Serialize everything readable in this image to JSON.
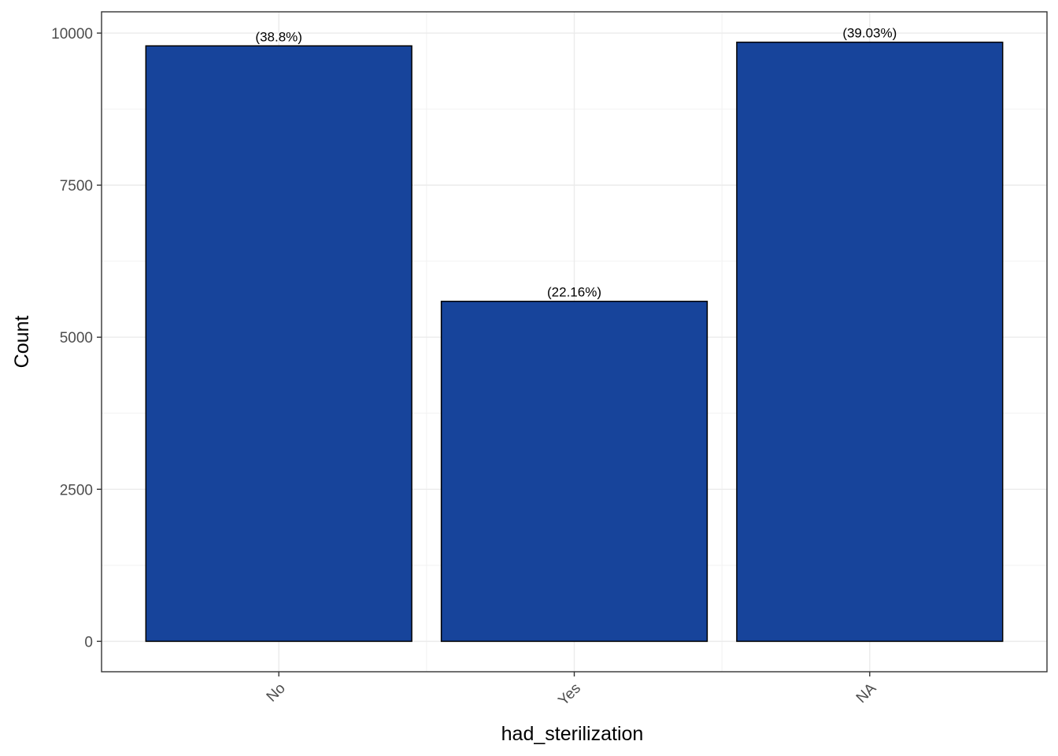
{
  "chart_data": {
    "type": "bar",
    "categories": [
      "No",
      "Yes",
      "NA"
    ],
    "values": [
      9790,
      5590,
      9850
    ],
    "labels": [
      "(38.8%)",
      "(22.16%)",
      "(39.03%)"
    ],
    "xlabel": "had_sterilization",
    "ylabel": "Count",
    "ylim": [
      -500,
      10350
    ],
    "yticks": [
      0,
      2500,
      5000,
      7500,
      10000
    ],
    "grid": true,
    "bar_color": "#17449b",
    "bar_border_color": "#000000",
    "x_tick_rotation_deg": 45
  }
}
